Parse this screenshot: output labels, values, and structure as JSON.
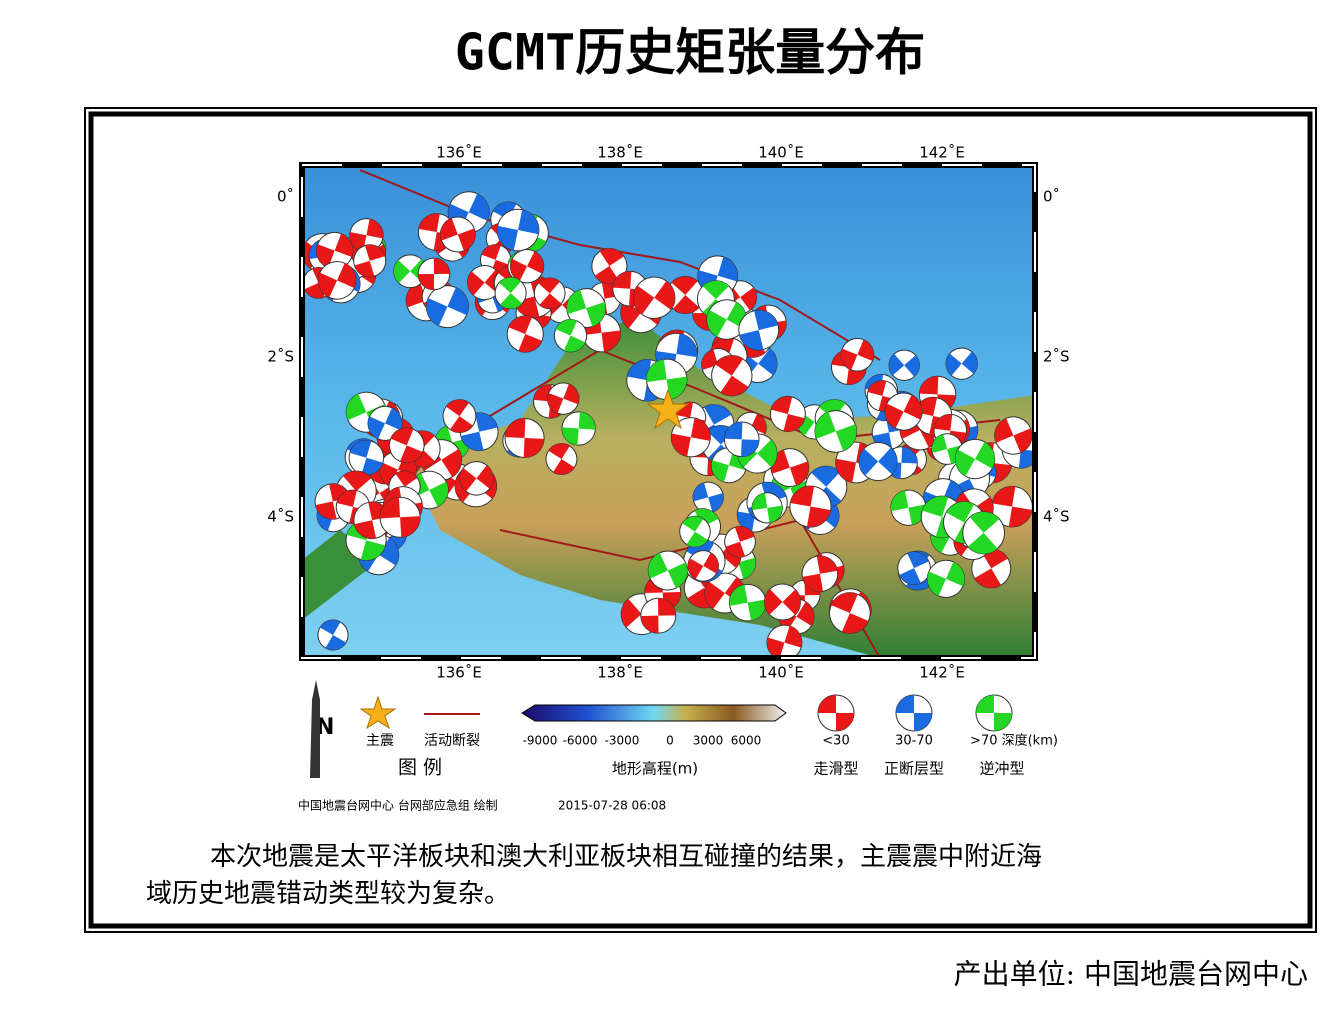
{
  "title": "GCMT历史矩张量分布",
  "map": {
    "lon_labels": [
      "136˚E",
      "138˚E",
      "140˚E",
      "142˚E"
    ],
    "lat_labels": [
      "0˚",
      "2˚S",
      "4˚S"
    ]
  },
  "legend": {
    "north": "N",
    "mainshock": "主震",
    "fault": "活动断裂",
    "heading": "图 例",
    "colorbar_labels": [
      "-9000",
      "-6000",
      "-3000",
      "0",
      "3000",
      "6000"
    ],
    "colorbar_title": "地形高程(m)",
    "depths": [
      "<30",
      "30-70",
      ">70 深度(km)"
    ],
    "mechanisms": [
      "走滑型",
      "正断层型",
      "逆冲型"
    ]
  },
  "credit": "中国地震台网中心 台网部应急组 绘制",
  "timestamp": "2015-07-28 06:08",
  "description_line1": "本次地震是太平洋板块和澳大利亚板块相互碰撞的结果，主震震中附近海",
  "description_line2": "域历史地震错动类型较为复杂。",
  "producer": "产出单位: 中国地震台网中心"
}
